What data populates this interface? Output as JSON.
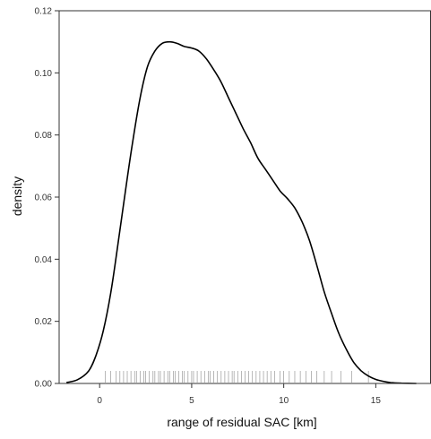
{
  "chart_data": {
    "type": "line",
    "title": "",
    "xlabel": "range of residual SAC [km]",
    "ylabel": "density",
    "xlim": [
      -2.2,
      18.0
    ],
    "ylim": [
      0,
      0.12
    ],
    "x_ticks": [
      0,
      5,
      10,
      15
    ],
    "x_tick_labels": [
      "0",
      "5",
      "10",
      "15"
    ],
    "y_ticks": [
      0,
      0.02,
      0.04,
      0.06,
      0.08,
      0.1,
      0.12
    ],
    "y_tick_labels": [
      "0.00",
      "0.02",
      "0.04",
      "0.06",
      "0.08",
      "0.10",
      "0.12"
    ],
    "grid": false,
    "legend": "none",
    "colors": {
      "line": "#000000",
      "axis": "#333333",
      "rug": "#999999"
    },
    "series": [
      {
        "x": [
          -1.8,
          -1.2,
          -0.6,
          -0.2,
          0.2,
          0.6,
          1.0,
          1.4,
          1.8,
          2.2,
          2.6,
          3.0,
          3.4,
          3.8,
          4.2,
          4.6,
          5.0,
          5.4,
          5.8,
          6.2,
          6.6,
          7.0,
          7.4,
          7.8,
          8.2,
          8.6,
          9.0,
          9.4,
          9.8,
          10.2,
          10.6,
          11.0,
          11.4,
          11.8,
          12.2,
          12.6,
          13.0,
          13.4,
          13.8,
          14.2,
          14.6,
          15.0,
          15.4,
          15.8,
          16.4,
          17.2
        ],
        "y": [
          0.0003,
          0.0012,
          0.004,
          0.009,
          0.017,
          0.029,
          0.045,
          0.062,
          0.078,
          0.092,
          0.102,
          0.107,
          0.1095,
          0.11,
          0.1095,
          0.1085,
          0.108,
          0.107,
          0.1045,
          0.101,
          0.097,
          0.092,
          0.087,
          0.082,
          0.0775,
          0.0725,
          0.069,
          0.0655,
          0.062,
          0.0595,
          0.0565,
          0.052,
          0.046,
          0.038,
          0.0295,
          0.0225,
          0.016,
          0.011,
          0.0068,
          0.0041,
          0.0024,
          0.0013,
          0.0007,
          0.0003,
          0.0001,
          0.0
        ]
      }
    ],
    "rug": [
      0.3,
      0.6,
      0.9,
      1.1,
      1.3,
      1.5,
      1.7,
      1.9,
      2.0,
      2.2,
      2.4,
      2.5,
      2.7,
      2.9,
      3.0,
      3.2,
      3.3,
      3.5,
      3.7,
      3.8,
      4.0,
      4.1,
      4.3,
      4.5,
      4.6,
      4.8,
      5.0,
      5.1,
      5.3,
      5.5,
      5.7,
      5.9,
      6.0,
      6.2,
      6.4,
      6.6,
      6.8,
      7.0,
      7.2,
      7.3,
      7.5,
      7.7,
      7.9,
      8.1,
      8.3,
      8.5,
      8.7,
      8.9,
      9.1,
      9.3,
      9.5,
      9.8,
      10.0,
      10.3,
      10.6,
      10.9,
      11.2,
      11.5,
      11.8,
      12.2,
      12.6,
      13.1,
      13.7,
      14.6
    ]
  }
}
